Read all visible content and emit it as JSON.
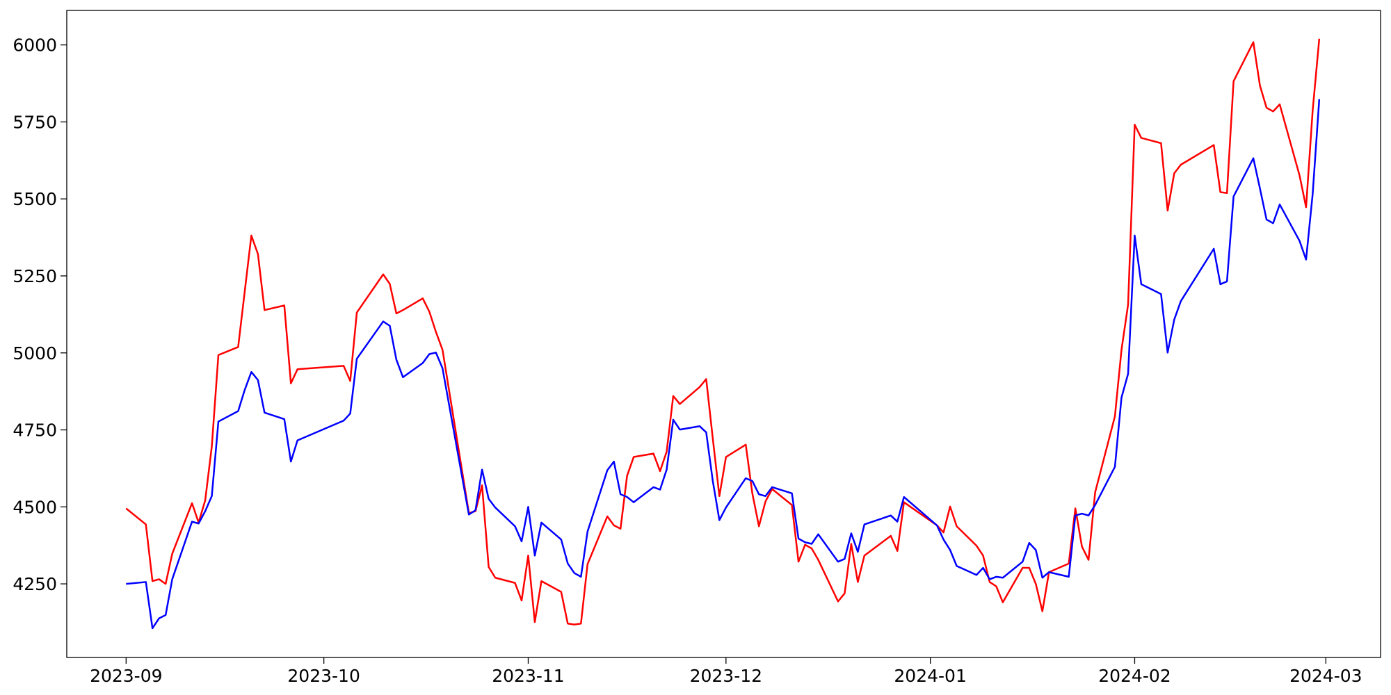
{
  "chart_data": {
    "type": "line",
    "x": [
      0,
      3,
      4,
      5,
      6,
      7,
      10,
      11,
      12,
      13,
      14,
      17,
      18,
      19,
      20,
      21,
      24,
      25,
      26,
      33,
      34,
      35,
      39,
      40,
      41,
      42,
      45,
      46,
      47,
      48,
      52,
      53,
      54,
      55,
      56,
      59,
      60,
      61,
      62,
      63,
      66,
      67,
      68,
      69,
      70,
      73,
      74,
      75,
      76,
      77,
      80,
      81,
      82,
      83,
      84,
      87,
      88,
      89,
      90,
      91,
      94,
      95,
      96,
      97,
      98,
      101,
      102,
      103,
      104,
      105,
      108,
      109,
      110,
      111,
      112,
      116,
      117,
      118,
      123,
      124,
      125,
      126,
      129,
      130,
      131,
      132,
      133,
      136,
      137,
      138,
      139,
      140,
      143,
      144,
      145,
      146,
      147,
      150,
      151,
      152,
      153,
      154,
      157,
      158,
      159,
      160,
      165,
      166,
      167,
      168,
      171,
      172,
      173,
      174,
      175,
      178,
      179,
      180,
      181
    ],
    "series": [
      {
        "color": "#ff0000",
        "values": [
          4495,
          4443,
          4259,
          4265,
          4250,
          4348,
          4512,
          4449,
          4521,
          4696,
          4993,
          5019,
          5200,
          5381,
          5321,
          5139,
          5154,
          4901,
          4947,
          4958,
          4909,
          5131,
          5255,
          5224,
          5128,
          5139,
          5177,
          5134,
          5068,
          5010,
          4480,
          4486,
          4570,
          4305,
          4270,
          4253,
          4196,
          4342,
          4126,
          4259,
          4224,
          4121,
          4118,
          4121,
          4314,
          4469,
          4440,
          4429,
          4601,
          4662,
          4673,
          4616,
          4679,
          4860,
          4834,
          4889,
          4915,
          4722,
          4535,
          4662,
          4702,
          4544,
          4437,
          4518,
          4558,
          4506,
          4322,
          4377,
          4365,
          4328,
          4193,
          4219,
          4380,
          4256,
          4342,
          4406,
          4357,
          4515,
          4440,
          4417,
          4501,
          4437,
          4374,
          4342,
          4256,
          4242,
          4190,
          4302,
          4302,
          4250,
          4161,
          4288,
          4316,
          4495,
          4371,
          4328,
          4547,
          4794,
          5010,
          5157,
          5741,
          5698,
          5681,
          5462,
          5583,
          5611,
          5675,
          5522,
          5519,
          5882,
          6009,
          5868,
          5796,
          5784,
          5807,
          5577,
          5473,
          5787,
          6020
        ]
      },
      {
        "color": "#0000ff",
        "values": [
          4250,
          4256,
          4106,
          4138,
          4149,
          4265,
          4452,
          4446,
          4486,
          4535,
          4777,
          4811,
          4880,
          4938,
          4912,
          4806,
          4785,
          4647,
          4716,
          4780,
          4803,
          4981,
          5102,
          5088,
          4978,
          4921,
          4967,
          4996,
          5001,
          4950,
          4475,
          4489,
          4621,
          4526,
          4498,
          4437,
          4388,
          4500,
          4342,
          4449,
          4394,
          4316,
          4285,
          4273,
          4420,
          4619,
          4647,
          4541,
          4532,
          4515,
          4564,
          4556,
          4621,
          4783,
          4751,
          4762,
          4742,
          4584,
          4457,
          4498,
          4593,
          4584,
          4541,
          4535,
          4564,
          4544,
          4397,
          4385,
          4380,
          4411,
          4322,
          4331,
          4414,
          4354,
          4443,
          4472,
          4452,
          4532,
          4440,
          4394,
          4360,
          4308,
          4279,
          4302,
          4265,
          4273,
          4270,
          4322,
          4383,
          4360,
          4270,
          4288,
          4273,
          4472,
          4478,
          4472,
          4506,
          4630,
          4855,
          4932,
          5381,
          5223,
          5191,
          5001,
          5108,
          5168,
          5338,
          5223,
          5232,
          5508,
          5632,
          5534,
          5433,
          5421,
          5482,
          5364,
          5303,
          5516,
          5824
        ]
      }
    ],
    "xlim": [
      -9,
      190.3
    ],
    "xticks": [
      {
        "value": 0,
        "label": "2023-09"
      },
      {
        "value": 30,
        "label": "2023-10"
      },
      {
        "value": 61,
        "label": "2023-11"
      },
      {
        "value": 91,
        "label": "2023-12"
      },
      {
        "value": 122,
        "label": "2024-01"
      },
      {
        "value": 153,
        "label": "2024-02"
      },
      {
        "value": 182,
        "label": "2024-03"
      }
    ],
    "ylim": [
      4011,
      6112
    ],
    "yticks": [
      4250,
      4500,
      4750,
      5000,
      5250,
      5500,
      5750,
      6000
    ],
    "grid": false
  }
}
